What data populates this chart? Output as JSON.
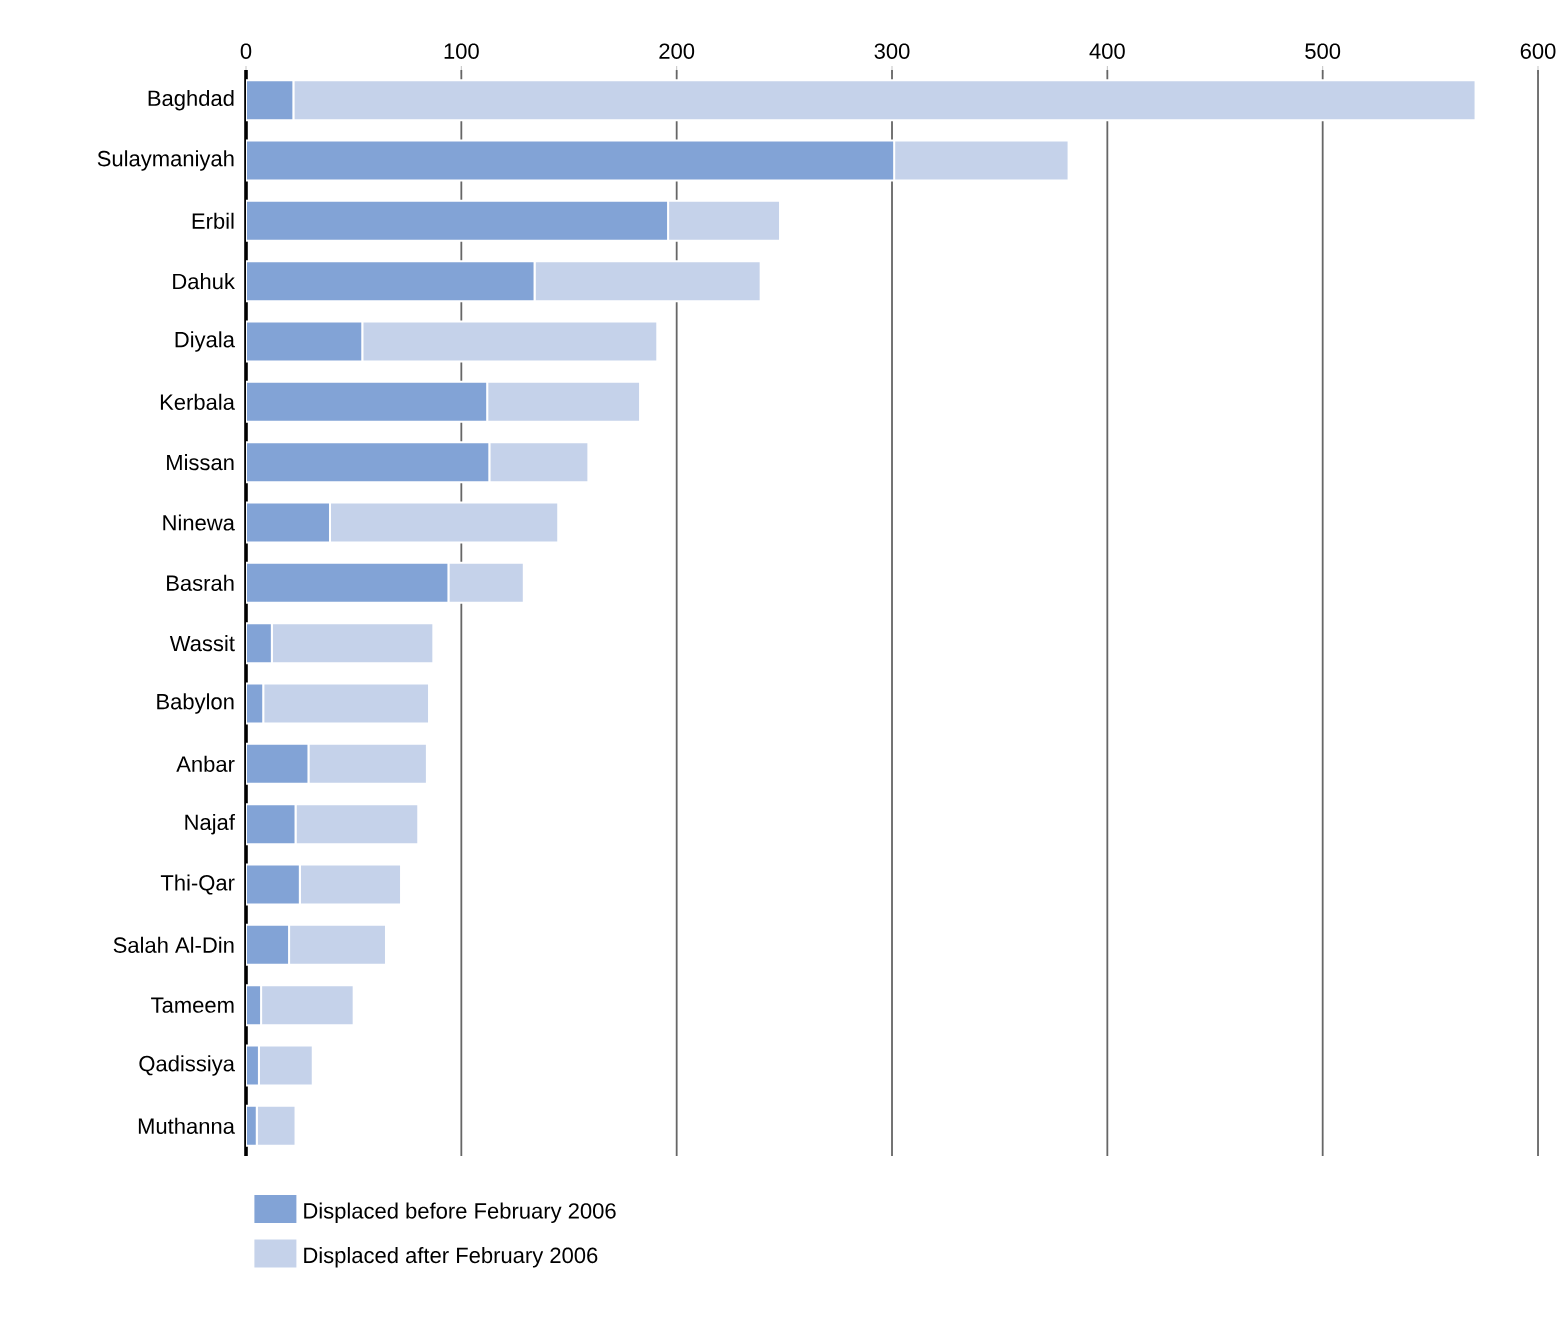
{
  "chart_data": {
    "type": "bar",
    "orientation": "horizontal",
    "stacked": true,
    "categories": [
      "Baghdad",
      "Sulaymaniyah",
      "Erbil",
      "Dahuk",
      "Diyala",
      "Kerbala",
      "Missan",
      "Ninewa",
      "Basrah",
      "Wassit",
      "Babylon",
      "Anbar",
      "Najaf",
      "Thi-Qar",
      "Salah Al-Din",
      "Tameem",
      "Qadissiya",
      "Muthanna"
    ],
    "series": [
      {
        "name": "Displaced before February 2006",
        "color": "#82a3d6",
        "values": [
          22,
          301,
          196,
          134,
          54,
          112,
          113,
          39,
          94,
          12,
          8,
          29,
          23,
          25,
          20,
          7,
          6,
          5
        ]
      },
      {
        "name": "Displaced after February 2006",
        "color": "#c5d2ea",
        "values": [
          549,
          81,
          52,
          105,
          137,
          71,
          46,
          106,
          35,
          75,
          77,
          55,
          57,
          47,
          45,
          43,
          25,
          18
        ]
      }
    ],
    "xlim": [
      0,
      600
    ],
    "xticks": [
      0,
      100,
      200,
      300,
      400,
      500,
      600
    ],
    "grid": "x",
    "legend": "bottom"
  }
}
